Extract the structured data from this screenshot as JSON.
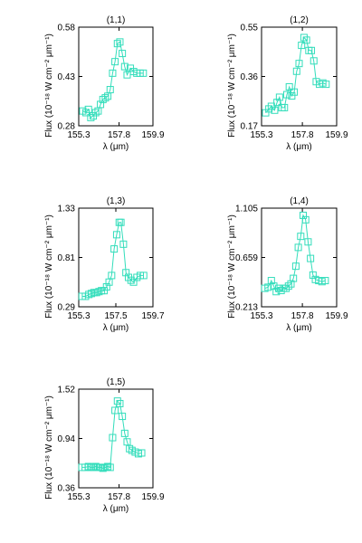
{
  "figure": {
    "background": "#ffffff",
    "series_color": "#33ddbb",
    "axis_color": "#000000"
  },
  "chart_data": [
    {
      "type": "line",
      "marker": "square",
      "title": "(1,1)",
      "xlabel": "λ (μm)",
      "ylabel": "Flux (10⁻¹⁸ W cm⁻² μm⁻¹)",
      "xlim": [
        155.3,
        159.9
      ],
      "ylim": [
        0.28,
        0.58
      ],
      "xticks": [
        "155.3",
        "157.8",
        "159.9"
      ],
      "yticks": [
        "0.28",
        "0.43",
        "0.58"
      ],
      "series": [
        {
          "x": [
            155.55,
            155.75,
            155.9,
            156.05,
            156.2,
            156.35,
            156.5,
            156.65,
            156.8,
            156.95,
            157.1,
            157.25,
            157.4,
            157.55,
            157.7,
            157.85,
            158.0,
            158.15,
            158.3,
            158.5,
            158.7,
            158.9,
            159.1,
            159.3
          ],
          "y": [
            0.325,
            0.32,
            0.33,
            0.305,
            0.31,
            0.32,
            0.325,
            0.345,
            0.36,
            0.365,
            0.37,
            0.39,
            0.44,
            0.475,
            0.53,
            0.535,
            0.5,
            0.46,
            0.435,
            0.455,
            0.445,
            0.44,
            0.44,
            0.44
          ]
        }
      ]
    },
    {
      "type": "line",
      "marker": "square",
      "title": "(1,2)",
      "xlabel": "λ (μm)",
      "ylabel": "Flux (10⁻¹⁸ W cm⁻² μm⁻¹)",
      "xlim": [
        155.3,
        159.9
      ],
      "ylim": [
        0.17,
        0.55
      ],
      "xticks": [
        "155.3",
        "157.8",
        "159.9"
      ],
      "yticks": [
        "0.17",
        "0.36",
        "0.55"
      ],
      "series": [
        {
          "x": [
            155.55,
            155.75,
            155.9,
            156.1,
            156.25,
            156.4,
            156.55,
            156.7,
            156.85,
            157.0,
            157.15,
            157.3,
            157.45,
            157.6,
            157.75,
            157.9,
            158.05,
            158.2,
            158.35,
            158.5,
            158.65,
            158.85,
            159.05,
            159.25
          ],
          "y": [
            0.22,
            0.235,
            0.245,
            0.23,
            0.26,
            0.28,
            0.24,
            0.24,
            0.29,
            0.32,
            0.285,
            0.3,
            0.38,
            0.41,
            0.48,
            0.51,
            0.5,
            0.46,
            0.46,
            0.42,
            0.34,
            0.33,
            0.335,
            0.33
          ]
        }
      ]
    },
    {
      "type": "line",
      "marker": "square",
      "title": "(1,3)",
      "xlabel": "λ (μm)",
      "ylabel": "Flux (10⁻¹⁸ W cm⁻² μm⁻¹)",
      "xlim": [
        155.3,
        159.7
      ],
      "ylim": [
        0.29,
        1.33
      ],
      "xticks": [
        "155.3",
        "157.5",
        "159.7"
      ],
      "yticks": [
        "0.29",
        "0.81",
        "1.33"
      ],
      "series": [
        {
          "x": [
            155.5,
            155.7,
            155.9,
            156.05,
            156.2,
            156.35,
            156.5,
            156.65,
            156.8,
            156.95,
            157.1,
            157.25,
            157.4,
            157.55,
            157.7,
            157.8,
            157.95,
            158.1,
            158.25,
            158.4,
            158.55,
            158.75,
            158.95,
            159.15
          ],
          "y": [
            0.4,
            0.4,
            0.42,
            0.43,
            0.44,
            0.44,
            0.45,
            0.46,
            0.46,
            0.5,
            0.55,
            0.62,
            0.9,
            1.05,
            1.18,
            1.18,
            0.95,
            0.65,
            0.6,
            0.57,
            0.55,
            0.6,
            0.62,
            0.62
          ]
        }
      ]
    },
    {
      "type": "line",
      "marker": "square",
      "title": "(1,4)",
      "xlabel": "λ (μm)",
      "ylabel": "Flux (10⁻¹⁸ W cm⁻² μm⁻¹)",
      "xlim": [
        155.3,
        159.9
      ],
      "ylim": [
        0.213,
        1.105
      ],
      "xticks": [
        "155.3",
        "157.8",
        "159.9"
      ],
      "yticks": [
        "0.213",
        "0.659",
        "1.105"
      ],
      "series": [
        {
          "x": [
            155.5,
            155.7,
            155.9,
            156.05,
            156.2,
            156.35,
            156.5,
            156.65,
            156.8,
            156.95,
            157.1,
            157.25,
            157.4,
            157.55,
            157.7,
            157.85,
            158.0,
            158.15,
            158.3,
            158.45,
            158.6,
            158.8,
            159.0,
            159.2
          ],
          "y": [
            0.38,
            0.39,
            0.45,
            0.4,
            0.35,
            0.38,
            0.36,
            0.38,
            0.38,
            0.4,
            0.42,
            0.47,
            0.58,
            0.75,
            0.85,
            1.04,
            1.0,
            0.8,
            0.65,
            0.5,
            0.46,
            0.45,
            0.44,
            0.45
          ]
        }
      ]
    },
    {
      "type": "line",
      "marker": "square",
      "title": "(1,5)",
      "xlabel": "λ (μm)",
      "ylabel": "Flux (10⁻¹⁸ W cm⁻² μm⁻¹)",
      "xlim": [
        155.3,
        159.9
      ],
      "ylim": [
        0.36,
        1.52
      ],
      "xticks": [
        "155.3",
        "157.8",
        "159.9"
      ],
      "yticks": [
        "0.36",
        "0.94",
        "1.52"
      ],
      "series": [
        {
          "x": [
            155.5,
            155.7,
            155.9,
            156.05,
            156.2,
            156.35,
            156.5,
            156.65,
            156.8,
            156.95,
            157.1,
            157.25,
            157.4,
            157.55,
            157.7,
            157.85,
            158.0,
            158.15,
            158.3,
            158.45,
            158.6,
            158.8,
            159.0,
            159.2
          ],
          "y": [
            0.6,
            0.6,
            0.61,
            0.6,
            0.6,
            0.61,
            0.6,
            0.6,
            0.59,
            0.6,
            0.61,
            0.6,
            0.95,
            1.27,
            1.38,
            1.35,
            1.2,
            1.0,
            0.9,
            0.82,
            0.8,
            0.78,
            0.76,
            0.77
          ]
        }
      ]
    }
  ]
}
